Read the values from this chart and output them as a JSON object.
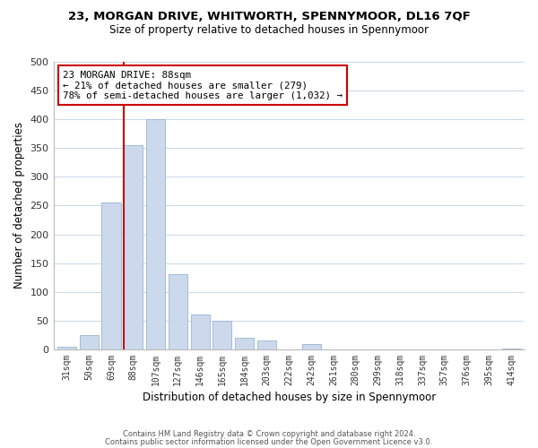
{
  "title": "23, MORGAN DRIVE, WHITWORTH, SPENNYMOOR, DL16 7QF",
  "subtitle": "Size of property relative to detached houses in Spennymoor",
  "xlabel": "Distribution of detached houses by size in Spennymoor",
  "ylabel": "Number of detached properties",
  "bin_labels": [
    "31sqm",
    "50sqm",
    "69sqm",
    "88sqm",
    "107sqm",
    "127sqm",
    "146sqm",
    "165sqm",
    "184sqm",
    "203sqm",
    "222sqm",
    "242sqm",
    "261sqm",
    "280sqm",
    "299sqm",
    "318sqm",
    "337sqm",
    "357sqm",
    "376sqm",
    "395sqm",
    "414sqm"
  ],
  "bar_heights": [
    5,
    25,
    255,
    355,
    400,
    130,
    60,
    50,
    20,
    15,
    0,
    10,
    0,
    0,
    0,
    0,
    0,
    0,
    0,
    0,
    2
  ],
  "bar_color": "#ccd9ec",
  "bar_edge_color": "#9ab3d5",
  "vertical_line_color": "#cc0000",
  "annotation_title": "23 MORGAN DRIVE: 88sqm",
  "annotation_line1": "← 21% of detached houses are smaller (279)",
  "annotation_line2": "78% of semi-detached houses are larger (1,032) →",
  "annotation_box_color": "#cc0000",
  "ylim": [
    0,
    500
  ],
  "yticks": [
    0,
    50,
    100,
    150,
    200,
    250,
    300,
    350,
    400,
    450,
    500
  ],
  "footnote1": "Contains HM Land Registry data © Crown copyright and database right 2024.",
  "footnote2": "Contains public sector information licensed under the Open Government Licence v3.0.",
  "fig_bg": "#ffffff",
  "grid_color": "#c8d8e8"
}
